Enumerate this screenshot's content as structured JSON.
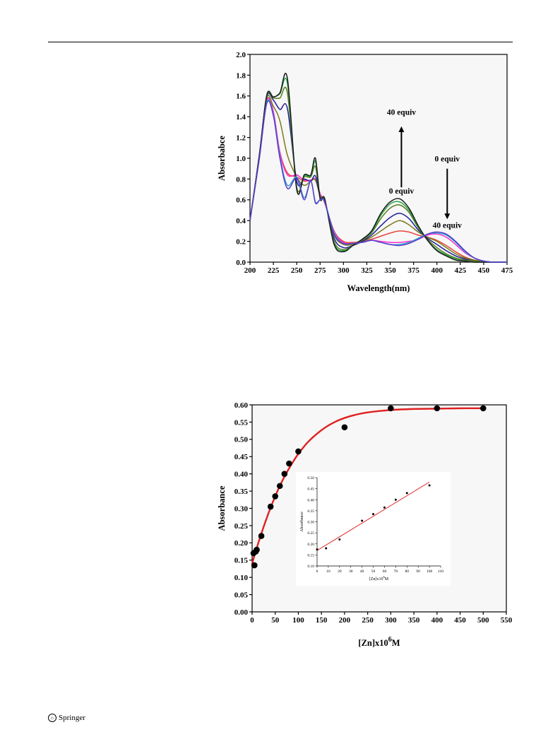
{
  "page": {
    "footer_text": "Springer"
  },
  "chart_data": [
    {
      "type": "line",
      "xlabel": "Wavelength(nm)",
      "ylabel": "Absorbabce",
      "xlim": [
        200,
        475
      ],
      "ylim": [
        0.0,
        2.0
      ],
      "xticks": [
        200,
        225,
        250,
        275,
        300,
        325,
        350,
        375,
        400,
        425,
        450,
        475
      ],
      "yticks": [
        0.0,
        0.2,
        0.4,
        0.6,
        0.8,
        1.0,
        1.2,
        1.4,
        1.6,
        1.8,
        2.0
      ],
      "ytick_labels": [
        "0.0",
        "0.2",
        "0.4",
        "0.6",
        "0.8",
        "1.0",
        "1.2",
        "1.4",
        "1.6",
        "1.8",
        "2.0"
      ],
      "grid": false,
      "annotations": [
        {
          "text": "40 equiv",
          "x": 362,
          "y": 1.42
        },
        {
          "text": "0 equiv",
          "x": 362,
          "y": 0.66
        },
        {
          "text": "0 equiv",
          "x": 411,
          "y": 0.97
        },
        {
          "text": "40 equiv",
          "x": 411,
          "y": 0.33
        }
      ],
      "arrows": [
        {
          "direction": "up",
          "x": 362,
          "from": 0.72,
          "to": 1.3
        },
        {
          "direction": "down",
          "x": 411,
          "from": 0.9,
          "to": 0.42
        }
      ],
      "series": [
        {
          "color": "#e8453c",
          "x": [
            200,
            210,
            218,
            225,
            232,
            240,
            250,
            258,
            265,
            270,
            275,
            280,
            290,
            300,
            310,
            320,
            330,
            340,
            350,
            360,
            370,
            380,
            390,
            400,
            410,
            420,
            430,
            440,
            450,
            460,
            475
          ],
          "values": [
            0.4,
            1.0,
            1.56,
            1.44,
            1.06,
            0.86,
            0.82,
            0.78,
            0.79,
            0.79,
            0.66,
            0.57,
            0.3,
            0.2,
            0.19,
            0.2,
            0.22,
            0.25,
            0.28,
            0.3,
            0.29,
            0.26,
            0.24,
            0.21,
            0.16,
            0.1,
            0.05,
            0.02,
            0.01,
            0.0,
            0.0
          ]
        },
        {
          "color": "#ff2fd0",
          "x": [
            200,
            210,
            218,
            225,
            232,
            240,
            250,
            258,
            265,
            270,
            275,
            280,
            290,
            300,
            310,
            320,
            330,
            340,
            350,
            360,
            370,
            380,
            390,
            400,
            410,
            420,
            430,
            440,
            450,
            460,
            475
          ],
          "values": [
            0.4,
            1.0,
            1.55,
            1.45,
            1.05,
            0.84,
            0.84,
            0.79,
            0.79,
            0.8,
            0.66,
            0.57,
            0.29,
            0.19,
            0.18,
            0.19,
            0.21,
            0.2,
            0.19,
            0.19,
            0.2,
            0.22,
            0.26,
            0.27,
            0.24,
            0.17,
            0.09,
            0.04,
            0.01,
            0.0,
            0.0
          ]
        },
        {
          "color": "#7a7a1a",
          "x": [
            200,
            210,
            218,
            225,
            232,
            240,
            250,
            258,
            265,
            270,
            275,
            280,
            290,
            300,
            310,
            320,
            330,
            340,
            350,
            360,
            370,
            380,
            390,
            400,
            410,
            420,
            430,
            440,
            450,
            460,
            475
          ],
          "values": [
            0.4,
            1.02,
            1.58,
            1.5,
            1.36,
            1.03,
            0.82,
            0.74,
            0.78,
            0.79,
            0.64,
            0.58,
            0.26,
            0.17,
            0.17,
            0.2,
            0.24,
            0.3,
            0.36,
            0.4,
            0.36,
            0.29,
            0.24,
            0.2,
            0.14,
            0.08,
            0.04,
            0.02,
            0.01,
            0.0,
            0.0
          ]
        },
        {
          "color": "#1e1e9a",
          "x": [
            200,
            210,
            218,
            225,
            232,
            240,
            250,
            258,
            265,
            270,
            275,
            280,
            290,
            300,
            310,
            320,
            330,
            340,
            350,
            360,
            370,
            380,
            390,
            400,
            410,
            420,
            430,
            440,
            450,
            460,
            475
          ],
          "values": [
            0.4,
            1.03,
            1.59,
            1.56,
            1.47,
            1.48,
            0.78,
            0.8,
            0.78,
            0.83,
            0.63,
            0.59,
            0.23,
            0.14,
            0.16,
            0.2,
            0.26,
            0.35,
            0.43,
            0.47,
            0.42,
            0.31,
            0.23,
            0.17,
            0.11,
            0.06,
            0.03,
            0.01,
            0.0,
            0.0,
            0.0
          ]
        },
        {
          "color": "#5b7a21",
          "x": [
            200,
            210,
            218,
            225,
            232,
            240,
            250,
            258,
            265,
            270,
            275,
            280,
            290,
            300,
            310,
            320,
            330,
            340,
            350,
            360,
            370,
            380,
            390,
            400,
            410,
            420,
            430,
            440,
            450,
            460,
            475
          ],
          "values": [
            0.4,
            1.03,
            1.6,
            1.58,
            1.58,
            1.63,
            0.72,
            0.82,
            0.82,
            0.92,
            0.62,
            0.6,
            0.2,
            0.12,
            0.16,
            0.21,
            0.28,
            0.42,
            0.52,
            0.55,
            0.48,
            0.33,
            0.22,
            0.14,
            0.08,
            0.04,
            0.02,
            0.01,
            0.0,
            0.0,
            0.0
          ]
        },
        {
          "color": "#2aa84a",
          "x": [
            200,
            210,
            218,
            225,
            232,
            240,
            250,
            258,
            265,
            270,
            275,
            280,
            290,
            300,
            310,
            320,
            330,
            340,
            350,
            360,
            370,
            380,
            390,
            400,
            410,
            420,
            430,
            440,
            450,
            460,
            475
          ],
          "values": [
            0.4,
            1.03,
            1.6,
            1.59,
            1.62,
            1.72,
            0.7,
            0.83,
            0.83,
            0.97,
            0.62,
            0.6,
            0.18,
            0.11,
            0.16,
            0.22,
            0.29,
            0.45,
            0.56,
            0.58,
            0.5,
            0.34,
            0.21,
            0.12,
            0.07,
            0.03,
            0.01,
            0.0,
            0.0,
            0.0,
            0.0
          ]
        },
        {
          "color": "#1a1a1a",
          "x": [
            200,
            210,
            218,
            225,
            232,
            240,
            250,
            258,
            265,
            270,
            275,
            280,
            290,
            300,
            310,
            320,
            330,
            340,
            350,
            360,
            370,
            380,
            390,
            400,
            410,
            420,
            430,
            440,
            450,
            460,
            475
          ],
          "values": [
            0.4,
            1.03,
            1.61,
            1.59,
            1.63,
            1.77,
            0.7,
            0.84,
            0.84,
            1.0,
            0.61,
            0.61,
            0.17,
            0.1,
            0.16,
            0.22,
            0.3,
            0.47,
            0.58,
            0.61,
            0.52,
            0.35,
            0.21,
            0.11,
            0.06,
            0.02,
            0.01,
            0.0,
            0.0,
            0.0,
            0.0
          ]
        },
        {
          "color": "#2fa6c8",
          "x": [
            200,
            210,
            218,
            225,
            232,
            240,
            250,
            258,
            265,
            270,
            275,
            280,
            290,
            300,
            310,
            320,
            330,
            340,
            350,
            360,
            370,
            380,
            390,
            400,
            410,
            420,
            430,
            440,
            450,
            460,
            475
          ],
          "values": [
            0.4,
            1.0,
            1.54,
            1.42,
            1.02,
            0.74,
            0.82,
            0.62,
            0.78,
            0.58,
            0.6,
            0.58,
            0.28,
            0.18,
            0.18,
            0.19,
            0.21,
            0.19,
            0.17,
            0.17,
            0.19,
            0.23,
            0.27,
            0.28,
            0.26,
            0.19,
            0.1,
            0.04,
            0.01,
            0.0,
            0.0
          ]
        },
        {
          "color": "#5a3ad0",
          "x": [
            200,
            210,
            218,
            225,
            232,
            240,
            250,
            258,
            265,
            270,
            275,
            280,
            290,
            300,
            310,
            320,
            330,
            340,
            350,
            360,
            370,
            380,
            390,
            400,
            410,
            420,
            430,
            440,
            450,
            460,
            475
          ],
          "values": [
            0.4,
            1.0,
            1.53,
            1.41,
            1.0,
            0.71,
            0.81,
            0.6,
            0.78,
            0.57,
            0.6,
            0.58,
            0.27,
            0.18,
            0.18,
            0.19,
            0.21,
            0.19,
            0.17,
            0.16,
            0.18,
            0.22,
            0.27,
            0.29,
            0.27,
            0.2,
            0.11,
            0.04,
            0.01,
            0.0,
            0.0
          ]
        }
      ]
    },
    {
      "type": "scatter",
      "xlabel": "[Zn]x10",
      "xlabel_sup": "6",
      "xlabel_suffix": "M",
      "ylabel": "Absorbance",
      "xlim": [
        0,
        550
      ],
      "ylim": [
        0.0,
        0.6
      ],
      "xticks": [
        0,
        50,
        100,
        150,
        200,
        250,
        300,
        350,
        400,
        450,
        500,
        550
      ],
      "yticks": [
        0.0,
        0.05,
        0.1,
        0.15,
        0.2,
        0.25,
        0.3,
        0.35,
        0.4,
        0.45,
        0.5,
        0.55,
        0.6
      ],
      "ytick_labels": [
        "0.00",
        "0.05",
        "0.10",
        "0.15",
        "0.20",
        "0.25",
        "0.30",
        "0.35",
        "0.40",
        "0.45",
        "0.50",
        "0.55",
        "0.60"
      ],
      "grid": false,
      "points": {
        "x": [
          3,
          5,
          8,
          10,
          20,
          40,
          50,
          60,
          70,
          80,
          100,
          200,
          300,
          400,
          500
        ],
        "y": [
          0.17,
          0.135,
          0.175,
          0.18,
          0.22,
          0.305,
          0.335,
          0.365,
          0.4,
          0.43,
          0.465,
          0.535,
          0.59,
          0.59,
          0.59
        ]
      },
      "fit_curve": {
        "color": "#e02020",
        "x": [
          0,
          10,
          20,
          30,
          40,
          50,
          60,
          70,
          80,
          90,
          100,
          120,
          140,
          160,
          180,
          200,
          220,
          250,
          300,
          350,
          400,
          450,
          500
        ],
        "y": [
          0.14,
          0.185,
          0.227,
          0.266,
          0.302,
          0.335,
          0.365,
          0.392,
          0.416,
          0.438,
          0.458,
          0.491,
          0.516,
          0.536,
          0.551,
          0.562,
          0.57,
          0.578,
          0.585,
          0.588,
          0.589,
          0.59,
          0.59
        ]
      },
      "inset": {
        "type": "scatter",
        "xlabel": "[Zn]x10",
        "xlabel_sup": "6",
        "xlabel_suffix": "M",
        "ylabel": "Absorbance",
        "xlim": [
          0,
          110
        ],
        "ylim": [
          0.1,
          0.5
        ],
        "xticks": [
          0,
          10,
          20,
          30,
          40,
          50,
          60,
          70,
          80,
          90,
          100,
          110
        ],
        "yticks": [
          0.1,
          0.15,
          0.2,
          0.25,
          0.3,
          0.35,
          0.4,
          0.45,
          0.5
        ],
        "ytick_labels": [
          "0.10",
          "0.15",
          "0.20",
          "0.25",
          "0.30",
          "0.35",
          "0.40",
          "0.45",
          "0.50"
        ],
        "points": {
          "x": [
            0,
            8,
            20,
            40,
            50,
            60,
            70,
            80,
            100
          ],
          "y": [
            0.175,
            0.18,
            0.22,
            0.305,
            0.335,
            0.365,
            0.4,
            0.43,
            0.465
          ]
        },
        "fit_line": {
          "color": "#e02020",
          "x": [
            0,
            100
          ],
          "y": [
            0.17,
            0.48
          ]
        }
      }
    }
  ]
}
